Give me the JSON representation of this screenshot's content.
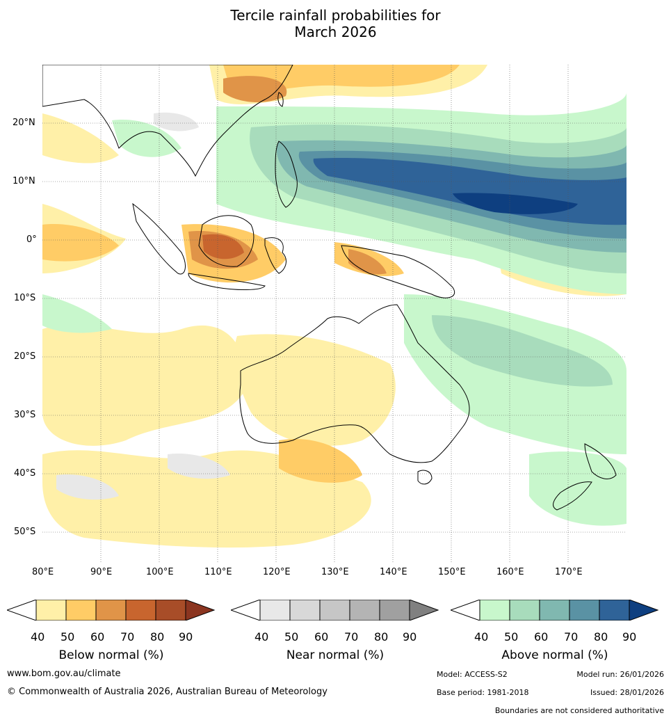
{
  "title": {
    "line1": "Tercile rainfall probabilities for",
    "line2": "March 2026"
  },
  "map": {
    "lon_labels": [
      "80°E",
      "90°E",
      "100°E",
      "110°E",
      "120°E",
      "130°E",
      "140°E",
      "150°E",
      "160°E",
      "170°E"
    ],
    "lat_labels": [
      "20°N",
      "10°N",
      "0°",
      "10°S",
      "20°S",
      "30°S",
      "40°S",
      "50°S"
    ],
    "lon_range": [
      80,
      180
    ],
    "lat_range": [
      -55,
      30
    ]
  },
  "colorbars": [
    {
      "label": "Below normal (%)",
      "ticks": [
        "40",
        "50",
        "60",
        "70",
        "80",
        "90"
      ],
      "colors": [
        "#ffffff",
        "#fff0a8",
        "#ffcc66",
        "#e09448",
        "#c8652e",
        "#a84d28",
        "#8b3520"
      ]
    },
    {
      "label": "Near normal (%)",
      "ticks": [
        "40",
        "50",
        "60",
        "70",
        "80",
        "90"
      ],
      "colors": [
        "#ffffff",
        "#e8e8e8",
        "#d8d8d8",
        "#c6c6c6",
        "#b4b4b4",
        "#a0a0a0",
        "#808080"
      ]
    },
    {
      "label": "Above normal (%)",
      "ticks": [
        "40",
        "50",
        "60",
        "70",
        "80",
        "90"
      ],
      "colors": [
        "#ffffff",
        "#c8f7cc",
        "#a8dcbc",
        "#80b8b0",
        "#5a92a4",
        "#2f6398",
        "#0e3f80"
      ]
    }
  ],
  "footer": {
    "website": "www.bom.gov.au/climate",
    "copyright": "© Commonwealth of Australia 2026, Australian Bureau of Meteorology",
    "model": "Model: ACCESS-S2",
    "model_run": "Model run: 26/01/2026",
    "base_period": "Base period: 1981-2018",
    "issued": "Issued: 28/01/2026",
    "disclaimer": "Boundaries are not considered authoritative"
  }
}
